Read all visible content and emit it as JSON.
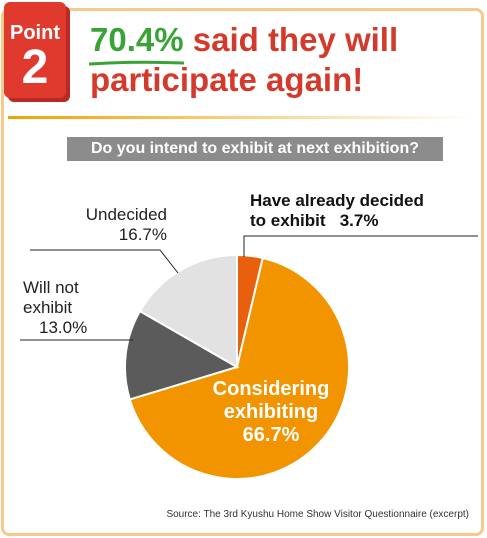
{
  "badge": {
    "label": "Point",
    "number": "2"
  },
  "headline": {
    "highlight": "70.4%",
    "line1_rest": " said they will",
    "line2": "participate again!"
  },
  "question": "Do you intend to exhibit at next exhibition?",
  "colors": {
    "accent_red": "#d33a2c",
    "accent_green": "#3aa335",
    "orange": "#f29400",
    "dark_orange": "#e8600e",
    "dark_gray": "#5b5b5b",
    "light_gray": "#e2e2e2"
  },
  "chart_data": {
    "type": "pie",
    "title": "Do you intend to exhibit at next exhibition?",
    "slices": [
      {
        "label_lines": [
          "Have already decided",
          "to exhibit   3.7%"
        ],
        "value": 3.7,
        "color": "#e8600e"
      },
      {
        "label_lines": [
          "Considering",
          "exhibiting",
          "66.7%"
        ],
        "value": 66.7,
        "color": "#f29400"
      },
      {
        "label_lines": [
          "Will not",
          "exhibit",
          "13.0%"
        ],
        "value": 13.0,
        "color": "#5b5b5b"
      },
      {
        "label_lines": [
          "Undecided",
          "16.7%"
        ],
        "value": 16.7,
        "color": "#e2e2e2"
      }
    ]
  },
  "source": "Source: The 3rd Kyushu Home Show Visitor Questionnaire (excerpt)"
}
